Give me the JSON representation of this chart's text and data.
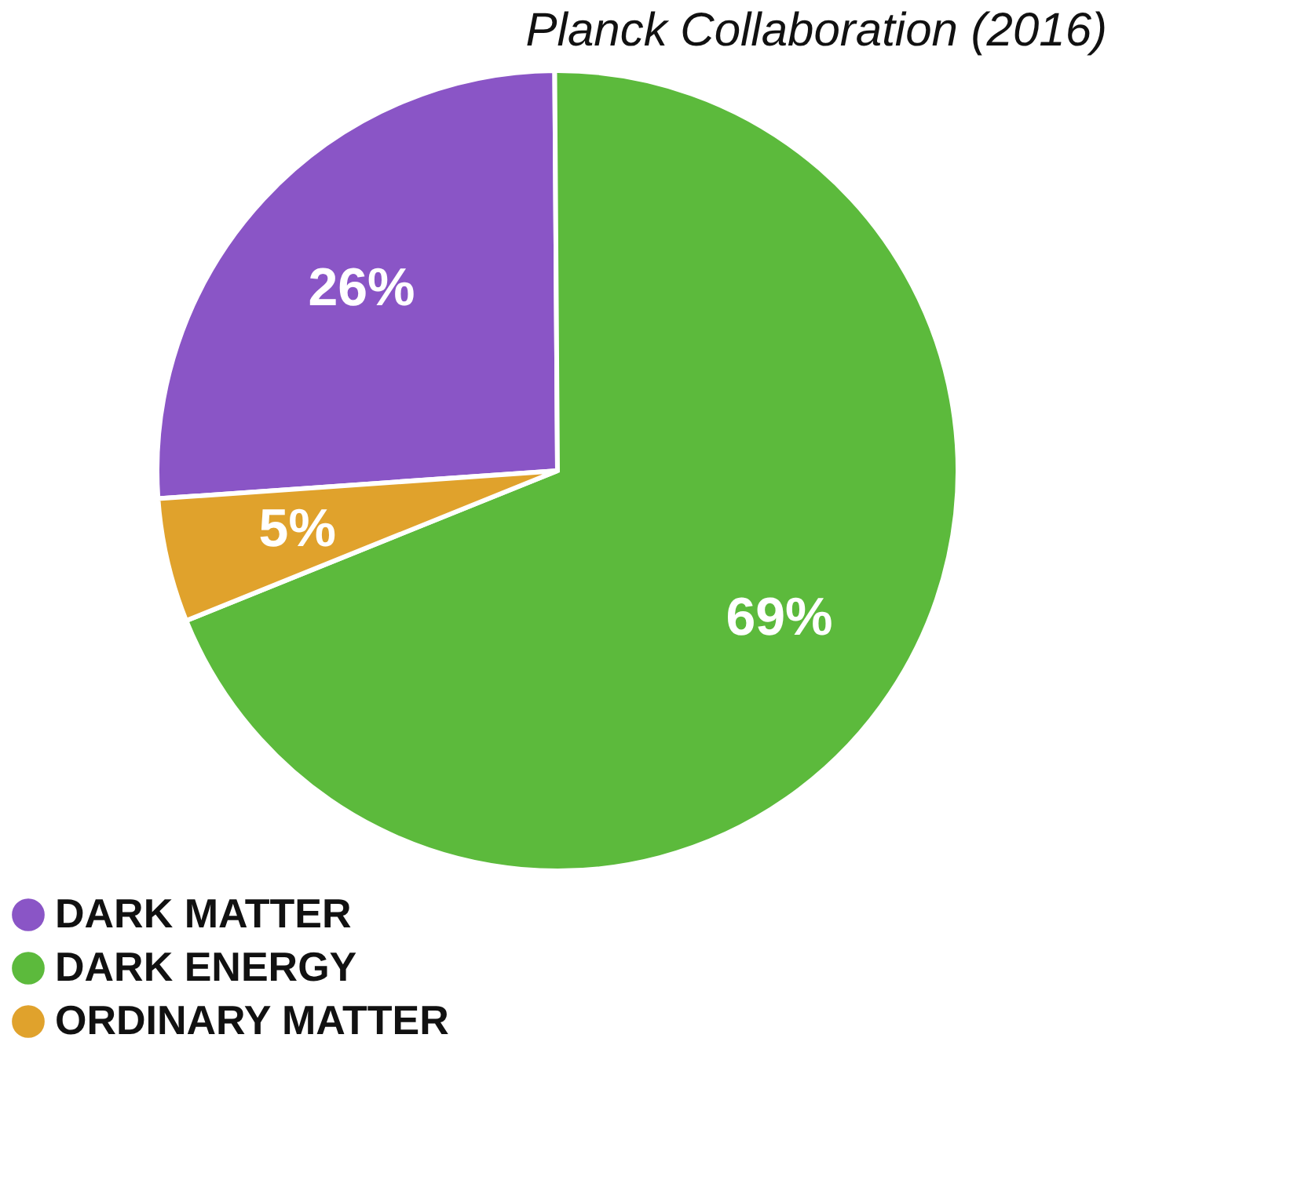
{
  "chart_data": {
    "type": "pie",
    "title": "Planck Collaboration (2016)",
    "categories": [
      "DARK MATTER",
      "DARK ENERGY",
      "ORDINARY MATTER"
    ],
    "values": [
      26,
      69,
      5
    ],
    "colors": [
      "#8a55c6",
      "#5cba3c",
      "#e0a22c"
    ],
    "value_labels": [
      "26%",
      "69%",
      "5%"
    ],
    "legend": "bottom left"
  }
}
